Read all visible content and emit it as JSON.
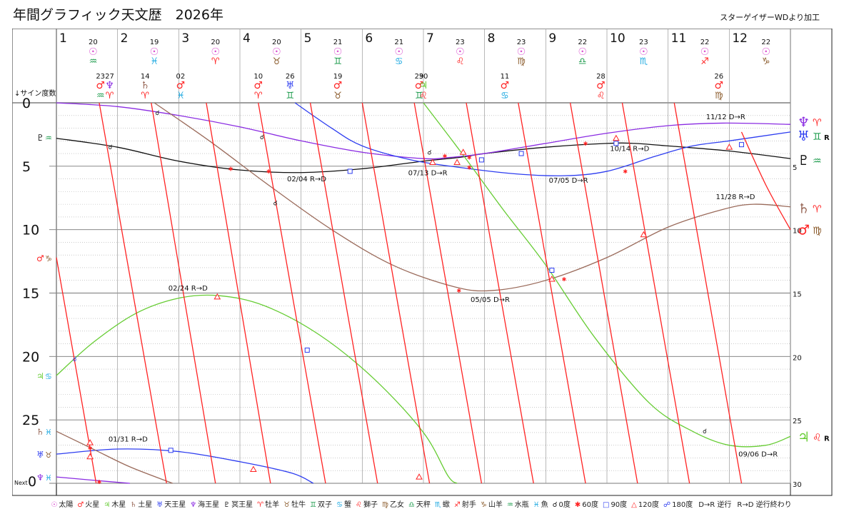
{
  "title": "年間グラフィック天文歴　2026年",
  "credit": "スターゲイザーWDより加工",
  "colors": {
    "sun": "#d94fd0",
    "mars": "#ff2222",
    "jupiter": "#66cc33",
    "saturn": "#9a6a5a",
    "uranus": "#2d3df0",
    "neptune": "#8a2be2",
    "pluto": "#111111",
    "grid": "#999999"
  },
  "chart_data": {
    "type": "line",
    "title": "年間グラフィック天文歴　2026年",
    "xlabel": "",
    "ylabel": "↓サイン度数",
    "xlim": [
      1,
      13
    ],
    "ylim": [
      0,
      30
    ],
    "y_ticks": [
      0,
      5,
      10,
      15,
      20,
      25
    ],
    "y_ticks_right": [
      5,
      10,
      15,
      20,
      25,
      30
    ],
    "month_labels": [
      "1",
      "2",
      "3",
      "4",
      "5",
      "6",
      "7",
      "8",
      "9",
      "10",
      "11",
      "12"
    ],
    "sun_ingress": [
      {
        "month": 1,
        "day": "20",
        "sign": "♒",
        "color": "#1a9a4a"
      },
      {
        "month": 2,
        "day": "19",
        "sign": "♓",
        "color": "#19a7e0"
      },
      {
        "month": 3,
        "day": "20",
        "sign": "♈",
        "color": "#ff2222"
      },
      {
        "month": 4,
        "day": "20",
        "sign": "♉",
        "color": "#8a5a2a"
      },
      {
        "month": 5,
        "day": "21",
        "sign": "♊",
        "color": "#1a9a4a"
      },
      {
        "month": 6,
        "day": "21",
        "sign": "♋",
        "color": "#19a7e0"
      },
      {
        "month": 7,
        "day": "23",
        "sign": "♌",
        "color": "#ff2222"
      },
      {
        "month": 8,
        "day": "23",
        "sign": "♍",
        "color": "#8a5a2a"
      },
      {
        "month": 9,
        "day": "22",
        "sign": "♎",
        "color": "#1a9a4a"
      },
      {
        "month": 10,
        "day": "23",
        "sign": "♏",
        "color": "#19a7e0"
      },
      {
        "month": 11,
        "day": "22",
        "sign": "♐",
        "color": "#ff2222"
      },
      {
        "month": 12,
        "day": "22",
        "sign": "♑",
        "color": "#8a5a2a"
      }
    ],
    "planet_ingress": [
      {
        "month": 1.72,
        "day": "23",
        "planet": "♂",
        "pcolor": "#ff2222",
        "sign": "♒",
        "scolor": "#1a9a4a"
      },
      {
        "month": 1.87,
        "day": "27",
        "planet": "♆",
        "pcolor": "#8a2be2",
        "sign": "♈",
        "scolor": "#ff2222"
      },
      {
        "month": 2.45,
        "day": "14",
        "planet": "♄",
        "pcolor": "#9a6a5a",
        "sign": "♈",
        "scolor": "#ff2222"
      },
      {
        "month": 3.03,
        "day": "02",
        "planet": "♂",
        "pcolor": "#ff2222",
        "sign": "♓",
        "scolor": "#19a7e0"
      },
      {
        "month": 4.3,
        "day": "10",
        "planet": "♂",
        "pcolor": "#ff2222",
        "sign": "♈",
        "scolor": "#ff2222"
      },
      {
        "month": 4.82,
        "day": "26",
        "planet": "♅",
        "pcolor": "#2d3df0",
        "sign": "♊",
        "scolor": "#1a9a4a"
      },
      {
        "month": 5.6,
        "day": "19",
        "planet": "♂",
        "pcolor": "#ff2222",
        "sign": "♉",
        "scolor": "#8a5a2a"
      },
      {
        "month": 6.93,
        "day": "29",
        "planet": "♂",
        "pcolor": "#ff2222",
        "sign": "♊",
        "scolor": "#1a9a4a"
      },
      {
        "month": 7.0,
        "day": "30",
        "planet": "♃",
        "pcolor": "#66cc33",
        "sign": "♌",
        "scolor": "#ff2222"
      },
      {
        "month": 8.33,
        "day": "11",
        "planet": "♂",
        "pcolor": "#ff2222",
        "sign": "♋",
        "scolor": "#19a7e0"
      },
      {
        "month": 9.9,
        "day": "28",
        "planet": "♂",
        "pcolor": "#ff2222",
        "sign": "♌",
        "scolor": "#ff2222"
      },
      {
        "month": 11.83,
        "day": "26",
        "planet": "♂",
        "pcolor": "#ff2222",
        "sign": "♍",
        "scolor": "#8a5a2a"
      }
    ],
    "left_labels": [
      {
        "y": 2.7,
        "planet": "♇",
        "pcolor": "#111111",
        "sign": "♒",
        "scolor": "#1a9a4a"
      },
      {
        "y": 12.2,
        "planet": "♂",
        "pcolor": "#ff2222",
        "sign": "♑",
        "scolor": "#8a5a2a"
      },
      {
        "y": 21.5,
        "planet": "♃",
        "pcolor": "#66cc33",
        "sign": "♋",
        "scolor": "#19a7e0"
      },
      {
        "y": 25.9,
        "planet": "♄",
        "pcolor": "#9a6a5a",
        "sign": "♓",
        "scolor": "#19a7e0"
      },
      {
        "y": 27.7,
        "planet": "♅",
        "pcolor": "#2d3df0",
        "sign": "♉",
        "scolor": "#8a5a2a"
      },
      {
        "y": 29.5,
        "planet": "♆",
        "pcolor": "#8a2be2",
        "sign": "♓",
        "scolor": "#19a7e0"
      }
    ],
    "right_labels": [
      {
        "y": 1.5,
        "planet": "♆",
        "pcolor": "#8a2be2",
        "sign": "♈",
        "scolor": "#ff2222",
        "r": ""
      },
      {
        "y": 2.6,
        "planet": "♅",
        "pcolor": "#2d3df0",
        "sign": "♊",
        "scolor": "#1a9a4a",
        "r": "R"
      },
      {
        "y": 4.5,
        "planet": "♇",
        "pcolor": "#111111",
        "sign": "♒",
        "scolor": "#1a9a4a",
        "r": ""
      },
      {
        "y": 8.3,
        "planet": "♄",
        "pcolor": "#9a6a5a",
        "sign": "♈",
        "scolor": "#ff2222",
        "r": ""
      },
      {
        "y": 10.0,
        "planet": "♂",
        "pcolor": "#ff2222",
        "sign": "♍",
        "scolor": "#8a5a2a",
        "r": ""
      },
      {
        "y": 26.3,
        "planet": "♃",
        "pcolor": "#66cc33",
        "sign": "♌",
        "scolor": "#ff2222",
        "r": "R"
      }
    ],
    "series": [
      {
        "name": "pluto",
        "color": "#111111",
        "points": [
          [
            1,
            2.8
          ],
          [
            2,
            3.5
          ],
          [
            3,
            4.6
          ],
          [
            4,
            5.3
          ],
          [
            5,
            5.5
          ],
          [
            6,
            5.2
          ],
          [
            7,
            4.6
          ],
          [
            7.6,
            4.3
          ],
          [
            8,
            4.0
          ],
          [
            9,
            3.5
          ],
          [
            10,
            3.2
          ],
          [
            10.45,
            3.2
          ],
          [
            11,
            3.4
          ],
          [
            12,
            3.8
          ],
          [
            13,
            4.4
          ]
        ]
      },
      {
        "name": "neptune",
        "color": "#8a2be2",
        "points": [
          [
            1,
            0
          ],
          [
            2,
            0.3
          ],
          [
            3,
            1.0
          ],
          [
            4,
            1.9
          ],
          [
            5,
            3.0
          ],
          [
            6,
            3.9
          ],
          [
            7,
            4.4
          ],
          [
            7.45,
            4.3
          ],
          [
            8,
            4.0
          ],
          [
            9,
            3.2
          ],
          [
            10,
            2.4
          ],
          [
            11,
            1.8
          ],
          [
            11.9,
            1.6
          ],
          [
            13,
            1.7
          ]
        ]
      },
      {
        "name": "uranus",
        "color": "#2d3df0",
        "points": [
          [
            4.9,
            0
          ],
          [
            5.5,
            2.0
          ],
          [
            6,
            3.4
          ],
          [
            6.8,
            4.5
          ],
          [
            7.6,
            5.1
          ],
          [
            8.5,
            5.6
          ],
          [
            9.3,
            5.75
          ],
          [
            10,
            5.4
          ],
          [
            10.8,
            4.2
          ],
          [
            11.4,
            3.4
          ],
          [
            12,
            3.0
          ],
          [
            13,
            2.3
          ]
        ]
      },
      {
        "name": "saturn",
        "color": "#9a6a5a",
        "points": [
          [
            2.6,
            0
          ],
          [
            3.5,
            3.0
          ],
          [
            4.5,
            6.6
          ],
          [
            5.5,
            10.0
          ],
          [
            6.5,
            12.8
          ],
          [
            7.5,
            14.5
          ],
          [
            8.13,
            14.8
          ],
          [
            9,
            14.0
          ],
          [
            10,
            12.2
          ],
          [
            11,
            9.8
          ],
          [
            11.9,
            8.4
          ],
          [
            12.4,
            8.0
          ],
          [
            13,
            8.2
          ]
        ]
      },
      {
        "name": "jupiter",
        "color": "#66cc33",
        "points": [
          [
            1,
            21.5
          ],
          [
            1.6,
            18.9
          ],
          [
            2.3,
            16.6
          ],
          [
            3,
            15.4
          ],
          [
            3.65,
            15.2
          ],
          [
            4.4,
            16.0
          ],
          [
            5.3,
            18.3
          ],
          [
            6.2,
            21.8
          ],
          [
            7,
            26.0
          ],
          [
            7.4,
            29.4
          ],
          [
            7.55,
            30
          ]
        ]
      },
      {
        "name": "jupiter2",
        "color": "#66cc33",
        "points": [
          [
            7.0,
            0
          ],
          [
            7.6,
            3.8
          ],
          [
            8.3,
            8.4
          ],
          [
            9,
            12.8
          ],
          [
            9.8,
            18.5
          ],
          [
            10.7,
            23.7
          ],
          [
            11.4,
            25.9
          ],
          [
            12,
            27.0
          ],
          [
            12.6,
            27.0
          ],
          [
            13,
            26.3
          ]
        ]
      },
      {
        "name": "uranus_prev",
        "color": "#2d3df0",
        "points": [
          [
            1,
            27.7
          ],
          [
            2,
            27.3
          ],
          [
            3,
            27.5
          ],
          [
            4,
            28.3
          ],
          [
            4.85,
            29.2
          ],
          [
            5.2,
            30
          ]
        ]
      },
      {
        "name": "neptune_prev",
        "color": "#8a2be2",
        "points": [
          [
            1,
            29.5
          ],
          [
            1.7,
            29.8
          ],
          [
            2.2,
            30
          ]
        ]
      },
      {
        "name": "saturn_prev",
        "color": "#9a6a5a",
        "points": [
          [
            1,
            25.9
          ],
          [
            1.6,
            27.3
          ],
          [
            2.2,
            28.7
          ],
          [
            2.9,
            30
          ]
        ]
      },
      {
        "name": "mars_curve",
        "color": "#ff2222",
        "points": [
          [
            12.2,
            2.3
          ],
          [
            12.6,
            6.5
          ],
          [
            13,
            10.0
          ]
        ]
      }
    ],
    "sun_lines": [
      [
        1.7,
        0,
        2.8,
        30
      ],
      [
        2.55,
        0,
        3.6,
        30
      ],
      [
        3.45,
        0,
        4.5,
        30
      ],
      [
        4.3,
        0,
        5.4,
        30
      ],
      [
        5.15,
        0,
        6.25,
        30
      ],
      [
        6.0,
        0,
        7.1,
        30
      ],
      [
        6.85,
        0,
        7.95,
        30
      ],
      [
        7.7,
        0,
        8.8,
        30
      ],
      [
        8.55,
        0,
        9.65,
        30
      ],
      [
        9.4,
        0,
        10.5,
        30
      ],
      [
        10.25,
        0,
        11.35,
        30
      ],
      [
        11.1,
        0,
        12.2,
        30
      ],
      [
        1.0,
        12.2,
        1.65,
        30
      ]
    ],
    "markers": [
      {
        "x": 1.88,
        "y": 3.5,
        "k": "conj",
        "c": "#111111"
      },
      {
        "x": 2.65,
        "y": 0.8,
        "k": "conj",
        "c": "#111111"
      },
      {
        "x": 4.36,
        "y": 2.7,
        "k": "conj",
        "c": "#111111"
      },
      {
        "x": 4.58,
        "y": 7.9,
        "k": "conj",
        "c": "#111111"
      },
      {
        "x": 7.1,
        "y": 3.9,
        "k": "conj",
        "c": "#111111"
      },
      {
        "x": 11.6,
        "y": 25.9,
        "k": "conj",
        "c": "#111111"
      },
      {
        "x": 1.3,
        "y": 20.2,
        "k": "conj",
        "c": "#2d3df0"
      },
      {
        "x": 3.85,
        "y": 5.2,
        "k": "sext",
        "c": "#ff2222"
      },
      {
        "x": 4.47,
        "y": 5.4,
        "k": "sext",
        "c": "#ff2222"
      },
      {
        "x": 7.35,
        "y": 4.2,
        "k": "sext",
        "c": "#ff2222"
      },
      {
        "x": 7.75,
        "y": 4.3,
        "k": "sext",
        "c": "#ff2222"
      },
      {
        "x": 7.58,
        "y": 14.8,
        "k": "sext",
        "c": "#ff2222"
      },
      {
        "x": 9.3,
        "y": 13.9,
        "k": "sext",
        "c": "#ff2222"
      },
      {
        "x": 9.65,
        "y": 3.2,
        "k": "sext",
        "c": "#ff2222"
      },
      {
        "x": 10.3,
        "y": 5.4,
        "k": "sext",
        "c": "#ff2222"
      },
      {
        "x": 1.55,
        "y": 27.2,
        "k": "sext",
        "c": "#ff2222"
      },
      {
        "x": 1.7,
        "y": 29.9,
        "k": "sext",
        "c": "#ff2222"
      },
      {
        "x": 7.75,
        "y": 5.1,
        "k": "sext",
        "c": "#ff2222"
      },
      {
        "x": 5.8,
        "y": 5.4,
        "k": "sq",
        "c": "#2d3df0"
      },
      {
        "x": 7.95,
        "y": 4.5,
        "k": "sq",
        "c": "#2d3df0"
      },
      {
        "x": 8.6,
        "y": 4.0,
        "k": "sq",
        "c": "#2d3df0"
      },
      {
        "x": 9.1,
        "y": 13.2,
        "k": "sq",
        "c": "#2d3df0"
      },
      {
        "x": 5.1,
        "y": 19.5,
        "k": "sq",
        "c": "#2d3df0"
      },
      {
        "x": 2.87,
        "y": 27.4,
        "k": "sq",
        "c": "#2d3df0"
      },
      {
        "x": 12.2,
        "y": 3.3,
        "k": "sq",
        "c": "#2d3df0"
      },
      {
        "x": 10.15,
        "y": 3.2,
        "k": "sq",
        "c": "#2d3df0"
      },
      {
        "x": 3.63,
        "y": 15.3,
        "k": "tri",
        "c": "#ff2222"
      },
      {
        "x": 7.15,
        "y": 4.7,
        "k": "tri",
        "c": "#ff2222"
      },
      {
        "x": 7.55,
        "y": 4.7,
        "k": "tri",
        "c": "#ff2222"
      },
      {
        "x": 7.65,
        "y": 3.9,
        "k": "tri",
        "c": "#ff2222"
      },
      {
        "x": 10.15,
        "y": 2.8,
        "k": "tri",
        "c": "#ff2222"
      },
      {
        "x": 10.6,
        "y": 10.4,
        "k": "tri",
        "c": "#ff2222"
      },
      {
        "x": 12.0,
        "y": 3.5,
        "k": "tri",
        "c": "#ff2222"
      },
      {
        "x": 1.55,
        "y": 26.8,
        "k": "tri",
        "c": "#ff2222"
      },
      {
        "x": 1.55,
        "y": 27.9,
        "k": "tri",
        "c": "#ff2222"
      },
      {
        "x": 4.22,
        "y": 28.9,
        "k": "tri",
        "c": "#ff2222"
      },
      {
        "x": 6.93,
        "y": 29.5,
        "k": "tri",
        "c": "#ff2222"
      },
      {
        "x": 9.1,
        "y": 13.9,
        "k": "tri",
        "c": "#ff2222"
      }
    ],
    "annotations": [
      {
        "x": 11.62,
        "y": 1.3,
        "text": "11/12  D→R"
      },
      {
        "x": 10.05,
        "y": 3.8,
        "text": "10/14  R→D"
      },
      {
        "x": 6.75,
        "y": 5.7,
        "text": "07/13  D→R"
      },
      {
        "x": 9.05,
        "y": 6.3,
        "text": "07/05  D→R"
      },
      {
        "x": 4.77,
        "y": 6.2,
        "text": "02/04  R→D"
      },
      {
        "x": 11.78,
        "y": 7.6,
        "text": "11/28  R→D"
      },
      {
        "x": 7.77,
        "y": 15.7,
        "text": "05/05  D→R"
      },
      {
        "x": 2.83,
        "y": 14.8,
        "text": "02/24  R→D"
      },
      {
        "x": 1.85,
        "y": 26.7,
        "text": "01/31  R→D"
      },
      {
        "x": 12.15,
        "y": 27.9,
        "text": "09/06  D→R"
      }
    ],
    "next_label": "Next"
  },
  "legend": [
    {
      "glyph": "☉",
      "color": "#d94fd0",
      "text": "太陽"
    },
    {
      "glyph": "♂",
      "color": "#ff2222",
      "text": "火星"
    },
    {
      "glyph": "♃",
      "color": "#66cc33",
      "text": "木星"
    },
    {
      "glyph": "♄",
      "color": "#9a6a5a",
      "text": "土星"
    },
    {
      "glyph": "♅",
      "color": "#2d3df0",
      "text": "天王星"
    },
    {
      "glyph": "♆",
      "color": "#8a2be2",
      "text": "海王星"
    },
    {
      "glyph": "♇",
      "color": "#111111",
      "text": "冥王星"
    },
    {
      "glyph": "♈",
      "color": "#ff2222",
      "text": "牡羊"
    },
    {
      "glyph": "♉",
      "color": "#8a5a2a",
      "text": "牡牛"
    },
    {
      "glyph": "♊",
      "color": "#1a9a4a",
      "text": "双子"
    },
    {
      "glyph": "♋",
      "color": "#19a7e0",
      "text": "蟹"
    },
    {
      "glyph": "♌",
      "color": "#ff2222",
      "text": "獅子"
    },
    {
      "glyph": "♍",
      "color": "#8a5a2a",
      "text": "乙女"
    },
    {
      "glyph": "♎",
      "color": "#1a9a4a",
      "text": "天秤"
    },
    {
      "glyph": "♏",
      "color": "#19a7e0",
      "text": "蠍"
    },
    {
      "glyph": "♐",
      "color": "#ff2222",
      "text": "射手"
    },
    {
      "glyph": "♑",
      "color": "#8a5a2a",
      "text": "山羊"
    },
    {
      "glyph": "♒",
      "color": "#1a9a4a",
      "text": "水瓶"
    },
    {
      "glyph": "♓",
      "color": "#19a7e0",
      "text": "魚"
    },
    {
      "glyph": "☌",
      "color": "#111111",
      "text": "0度"
    },
    {
      "glyph": "✱",
      "color": "#ff2222",
      "text": "60度"
    },
    {
      "glyph": "□",
      "color": "#2d3df0",
      "text": "90度"
    },
    {
      "glyph": "△",
      "color": "#ff2222",
      "text": "120度"
    },
    {
      "glyph": "☍",
      "color": "#2d3df0",
      "text": "180度"
    },
    {
      "glyph": "",
      "color": "#222222",
      "text": "D→R 逆行"
    },
    {
      "glyph": "",
      "color": "#222222",
      "text": "R→D 逆行終わり"
    }
  ]
}
